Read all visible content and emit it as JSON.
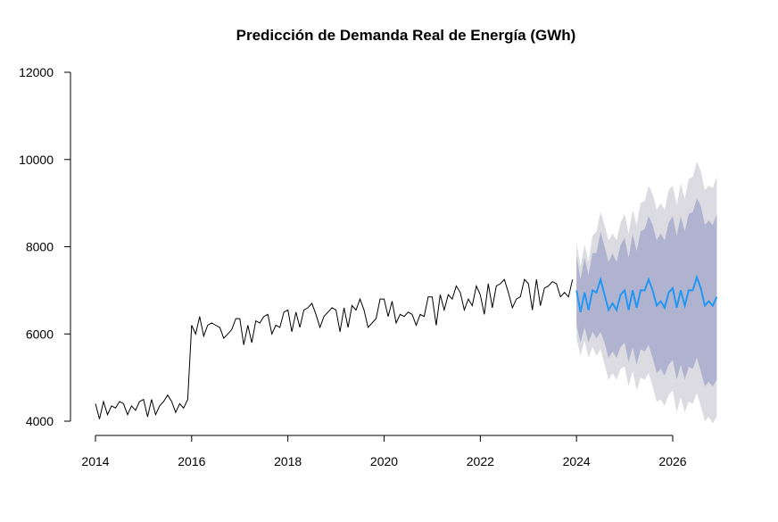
{
  "chart_data": {
    "type": "line",
    "title": "Predicción de Demanda Real de Energía (GWh)",
    "xlabel": "",
    "ylabel": "",
    "xlim": [
      2014,
      2027
    ],
    "ylim": [
      4000,
      12000
    ],
    "x_ticks": [
      2014,
      2016,
      2018,
      2020,
      2022,
      2024,
      2026
    ],
    "y_ticks": [
      4000,
      6000,
      8000,
      10000,
      12000
    ],
    "y_tick_labels": [
      "4000",
      "6000",
      "8000",
      "10000",
      "12000"
    ],
    "grid": false,
    "legend": "none",
    "colors": {
      "history": "#000000",
      "forecast": "#2196f3",
      "band95": "#dbdbe1",
      "band80": "#b0b3cf"
    },
    "series": [
      {
        "x": [
          2014.0,
          2014.083,
          2014.167,
          2014.25,
          2014.333,
          2014.417,
          2014.5,
          2014.583,
          2014.667,
          2014.75,
          2014.833,
          2014.917,
          2015.0,
          2015.083,
          2015.167,
          2015.25,
          2015.333,
          2015.417,
          2015.5,
          2015.583,
          2015.667,
          2015.75,
          2015.833,
          2015.917,
          2016.0,
          2016.083,
          2016.167,
          2016.25,
          2016.333,
          2016.417,
          2016.5,
          2016.583,
          2016.667,
          2016.75,
          2016.833,
          2016.917,
          2017.0,
          2017.083,
          2017.167,
          2017.25,
          2017.333,
          2017.417,
          2017.5,
          2017.583,
          2017.667,
          2017.75,
          2017.833,
          2017.917,
          2018.0,
          2018.083,
          2018.167,
          2018.25,
          2018.333,
          2018.417,
          2018.5,
          2018.583,
          2018.667,
          2018.75,
          2018.833,
          2018.917,
          2019.0,
          2019.083,
          2019.167,
          2019.25,
          2019.333,
          2019.417,
          2019.5,
          2019.583,
          2019.667,
          2019.75,
          2019.833,
          2019.917,
          2020.0,
          2020.083,
          2020.167,
          2020.25,
          2020.333,
          2020.417,
          2020.5,
          2020.583,
          2020.667,
          2020.75,
          2020.833,
          2020.917,
          2021.0,
          2021.083,
          2021.167,
          2021.25,
          2021.333,
          2021.417,
          2021.5,
          2021.583,
          2021.667,
          2021.75,
          2021.833,
          2021.917,
          2022.0,
          2022.083,
          2022.167,
          2022.25,
          2022.333,
          2022.417,
          2022.5,
          2022.583,
          2022.667,
          2022.75,
          2022.833,
          2022.917,
          2023.0,
          2023.083,
          2023.167,
          2023.25,
          2023.333,
          2023.417,
          2023.5,
          2023.583,
          2023.667,
          2023.75,
          2023.833,
          2023.917
        ],
        "y": [
          4400,
          4050,
          4450,
          4150,
          4350,
          4300,
          4450,
          4400,
          4150,
          4350,
          4250,
          4450,
          4500,
          4100,
          4500,
          4150,
          4350,
          4450,
          4600,
          4450,
          4200,
          4400,
          4300,
          4500,
          6200,
          6000,
          6400,
          5950,
          6200,
          6250,
          6200,
          6150,
          5900,
          6000,
          6100,
          6350,
          6350,
          5750,
          6200,
          5800,
          6300,
          6250,
          6400,
          6450,
          6000,
          6200,
          6150,
          6500,
          6550,
          6050,
          6500,
          6150,
          6550,
          6600,
          6700,
          6450,
          6150,
          6400,
          6500,
          6600,
          6550,
          6050,
          6600,
          6150,
          6650,
          6550,
          6800,
          6550,
          6150,
          6250,
          6350,
          6800,
          6800,
          6400,
          6750,
          6250,
          6450,
          6400,
          6500,
          6450,
          6200,
          6450,
          6400,
          6850,
          6850,
          6200,
          6900,
          6550,
          6900,
          6800,
          7100,
          6950,
          6550,
          6800,
          6650,
          7100,
          6900,
          6450,
          7150,
          6600,
          7100,
          7150,
          7250,
          6950,
          6600,
          6800,
          6850,
          7250,
          7150,
          6550,
          7250,
          6650,
          7050,
          7100,
          7200,
          7150,
          6850,
          6950,
          6850,
          7250
        ]
      },
      {
        "x": [
          2024.0,
          2024.083,
          2024.167,
          2024.25,
          2024.333,
          2024.417,
          2024.5,
          2024.583,
          2024.667,
          2024.75,
          2024.833,
          2024.917,
          2025.0,
          2025.083,
          2025.167,
          2025.25,
          2025.333,
          2025.417,
          2025.5,
          2025.583,
          2025.667,
          2025.75,
          2025.833,
          2025.917,
          2026.0,
          2026.083,
          2026.167,
          2026.25,
          2026.333,
          2026.417,
          2026.5,
          2026.583,
          2026.667,
          2026.75,
          2026.833,
          2026.917
        ],
        "y": [
          7000,
          6500,
          6950,
          6550,
          7000,
          6950,
          7250,
          6900,
          6550,
          6700,
          6550,
          6900,
          7000,
          6550,
          7000,
          6600,
          7000,
          7000,
          7250,
          7000,
          6650,
          6750,
          6600,
          6950,
          7050,
          6600,
          7000,
          6650,
          7000,
          7000,
          7300,
          7050,
          6650,
          6750,
          6650,
          6850
        ],
        "lower80": [
          6200,
          5800,
          6150,
          5800,
          6050,
          5900,
          6050,
          5800,
          5450,
          5600,
          5450,
          5700,
          5800,
          5350,
          5700,
          5300,
          5650,
          5600,
          5750,
          5450,
          5100,
          5200,
          5050,
          5300,
          5400,
          4950,
          5300,
          4950,
          5250,
          5200,
          5450,
          5150,
          4800,
          4900,
          4800,
          4950
        ],
        "upper80": [
          7800,
          7250,
          7750,
          7350,
          7850,
          7850,
          8350,
          8000,
          7650,
          7850,
          7650,
          8050,
          8200,
          7750,
          8300,
          7900,
          8350,
          8400,
          8700,
          8500,
          8150,
          8300,
          8150,
          8550,
          8700,
          8250,
          8700,
          8350,
          8750,
          8800,
          9100,
          8950,
          8500,
          8600,
          8500,
          8750
        ],
        "lower95": [
          5900,
          5500,
          5850,
          5450,
          5700,
          5500,
          5650,
          5300,
          4950,
          5100,
          4950,
          5200,
          5250,
          4800,
          5150,
          4700,
          5000,
          4950,
          5100,
          4800,
          4450,
          4500,
          4350,
          4600,
          4700,
          4200,
          4550,
          4200,
          4450,
          4400,
          4650,
          4350,
          4000,
          4100,
          3950,
          4100
        ],
        "upper95": [
          8100,
          7550,
          8050,
          7650,
          8250,
          8350,
          8800,
          8500,
          8150,
          8300,
          8150,
          8550,
          8750,
          8300,
          8850,
          8500,
          9000,
          9050,
          9400,
          9200,
          8850,
          9000,
          8850,
          9300,
          9400,
          8950,
          9450,
          9100,
          9550,
          9600,
          9950,
          9750,
          9300,
          9400,
          9350,
          9600
        ]
      }
    ]
  }
}
